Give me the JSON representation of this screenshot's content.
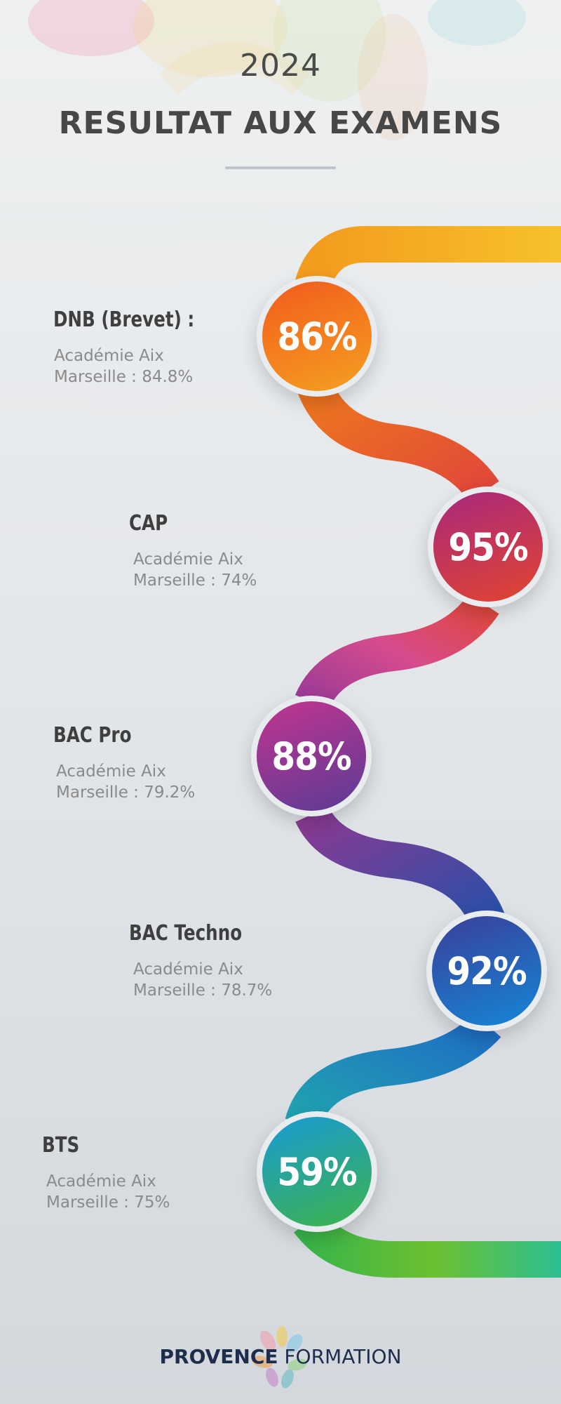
{
  "header": {
    "year": "2024",
    "title": "RESULTAT AUX EXAMENS"
  },
  "results": [
    {
      "exam": "DNB (Brevet) :",
      "academie_line1": "Académie Aix",
      "academie_line2": "Marseille : 84.8%",
      "rate": "86%",
      "rate_value": 86
    },
    {
      "exam": "CAP",
      "academie_line1": "Académie Aix",
      "academie_line2": "Marseille : 74%",
      "rate": "95%",
      "rate_value": 95
    },
    {
      "exam": "BAC Pro",
      "academie_line1": "Académie Aix",
      "academie_line2": "Marseille : 79.2%",
      "rate": "88%",
      "rate_value": 88
    },
    {
      "exam": "BAC Techno",
      "academie_line1": "Académie Aix",
      "academie_line2": "Marseille : 78.7%",
      "rate": "92%",
      "rate_value": 92
    },
    {
      "exam": "BTS",
      "academie_line1": "Académie Aix",
      "academie_line2": "Marseille : 75%",
      "rate": "59%",
      "rate_value": 59
    }
  ],
  "footer": {
    "brand_bold": "PROVENCE",
    "brand_regular": " FORMATION"
  },
  "colors": {
    "dnb": "#f07a1c",
    "cap": "#d8342f",
    "bac_pro": "#9b3b96",
    "bac_techno": "#2a5fb7",
    "bts": "#2aa86a"
  }
}
